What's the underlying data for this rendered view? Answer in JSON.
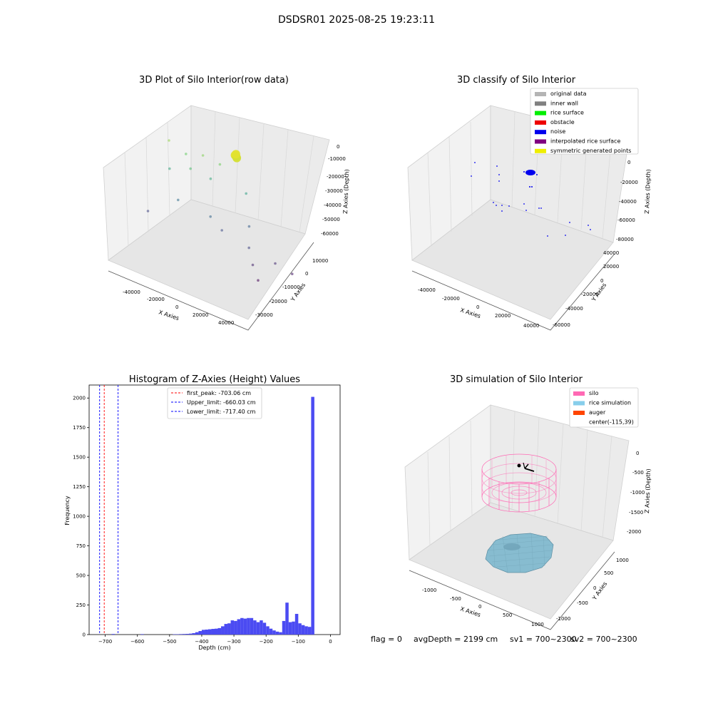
{
  "figure_title": "DSDSR01 2025-08-25 19:23:11",
  "status": {
    "flag": "flag = 0",
    "avg_depth": "avgDepth = 2199 cm",
    "sv1": "sv1 = 700~2300",
    "sv2": "sv2 = 700~2300"
  },
  "chart_data": [
    {
      "type": "scatter",
      "title": "3D Plot of Silo Interior(row data)",
      "xlabel": "X Axies",
      "ylabel": "Y Axies",
      "zlabel": "Z Axies (Depth)",
      "x_ticks": [
        "-40000",
        "-20000",
        "0",
        "20000",
        "40000"
      ],
      "y_ticks": [
        "-30000",
        "-20000",
        "-10000",
        "0",
        "10000"
      ],
      "z_ticks": [
        "0",
        "-10000",
        "-20000",
        "-30000",
        "-40000",
        "-50000",
        "-60000"
      ],
      "grid": true,
      "colormap": "viridis",
      "points_xyz": [
        [
          -300,
          300,
          -3000
        ],
        [
          500,
          0,
          -3500
        ],
        [
          1000,
          -500,
          -4000
        ],
        [
          0,
          800,
          -2500
        ],
        [
          -40000,
          10000,
          -10000
        ],
        [
          -30000,
          8000,
          -15000
        ],
        [
          -20000,
          6000,
          -12000
        ],
        [
          -10000,
          4000,
          -14000
        ],
        [
          -25000,
          2000,
          -20000
        ],
        [
          -38000,
          6000,
          -26000
        ],
        [
          -15000,
          4000,
          -25000
        ],
        [
          5000,
          2000,
          -28000
        ],
        [
          -30000,
          -2000,
          -40000
        ],
        [
          -10000,
          -8000,
          -42000
        ],
        [
          10000,
          -6000,
          -44000
        ],
        [
          -3000,
          -10000,
          -48000
        ],
        [
          15000,
          -18000,
          -50000
        ],
        [
          -45000,
          -5000,
          -50000
        ],
        [
          20000,
          -25000,
          -56000
        ],
        [
          30000,
          -20000,
          -55000
        ],
        [
          40000,
          -22000,
          -58000
        ],
        [
          25000,
          -30000,
          -62000
        ]
      ]
    },
    {
      "type": "scatter",
      "title": "3D classify of Silo Interior",
      "xlabel": "X Axies",
      "ylabel": "Y Axies",
      "zlabel": "Z Axies (Depth)",
      "x_ticks": [
        "-40000",
        "-20000",
        "0",
        "20000",
        "40000"
      ],
      "y_ticks": [
        "-60000",
        "-40000",
        "-20000",
        "0",
        "20000",
        "40000"
      ],
      "z_ticks": [
        "0",
        "-20000",
        "-40000",
        "-60000",
        "-80000"
      ],
      "grid": true,
      "legend": [
        {
          "label": "original data",
          "color": "#b4b4b4"
        },
        {
          "label": "inner wall",
          "color": "#808080"
        },
        {
          "label": "rice surface",
          "color": "#00ee00"
        },
        {
          "label": "obstacle",
          "color": "#ee0000"
        },
        {
          "label": "noise",
          "color": "#0000ee"
        },
        {
          "label": "interpolated rice surface",
          "color": "#800080"
        },
        {
          "label": "symmetric generated points",
          "color": "#eeee00"
        }
      ],
      "legend_location": "upper right"
    },
    {
      "type": "bar",
      "title": "Histogram of Z-Axies (Height) Values",
      "xlabel": "Depth (cm)",
      "ylabel": "Frequency",
      "xlim": [
        -750,
        30
      ],
      "ylim": [
        0,
        2110
      ],
      "x_ticks": [
        -700,
        -600,
        -500,
        -400,
        -300,
        -200,
        -100,
        0
      ],
      "y_ticks": [
        0,
        250,
        500,
        750,
        1000,
        1250,
        1500,
        1750,
        2000
      ],
      "bin_width": 10,
      "bar_color": "#4b4bf2",
      "bins": [
        [
          -680,
          5
        ],
        [
          -590,
          4
        ],
        [
          -490,
          3
        ],
        [
          -480,
          3
        ],
        [
          -470,
          4
        ],
        [
          -460,
          5
        ],
        [
          -450,
          6
        ],
        [
          -440,
          8
        ],
        [
          -430,
          12
        ],
        [
          -420,
          20
        ],
        [
          -410,
          30
        ],
        [
          -400,
          40
        ],
        [
          -390,
          42
        ],
        [
          -380,
          45
        ],
        [
          -370,
          48
        ],
        [
          -360,
          50
        ],
        [
          -350,
          55
        ],
        [
          -340,
          70
        ],
        [
          -330,
          90
        ],
        [
          -320,
          95
        ],
        [
          -310,
          120
        ],
        [
          -300,
          115
        ],
        [
          -290,
          130
        ],
        [
          -280,
          140
        ],
        [
          -270,
          135
        ],
        [
          -260,
          140
        ],
        [
          -250,
          140
        ],
        [
          -240,
          120
        ],
        [
          -230,
          105
        ],
        [
          -220,
          120
        ],
        [
          -210,
          100
        ],
        [
          -200,
          70
        ],
        [
          -190,
          50
        ],
        [
          -180,
          35
        ],
        [
          -170,
          25
        ],
        [
          -160,
          20
        ],
        [
          -150,
          115
        ],
        [
          -140,
          270
        ],
        [
          -130,
          105
        ],
        [
          -120,
          110
        ],
        [
          -110,
          175
        ],
        [
          -100,
          95
        ],
        [
          -90,
          80
        ],
        [
          -80,
          70
        ],
        [
          -70,
          65
        ],
        [
          -60,
          2010
        ]
      ],
      "reference_lines": [
        {
          "label": "first_peak: -703.06 cm",
          "value": -703.06,
          "color": "#ff0000"
        },
        {
          "label": "Upper_limit: -660.03 cm",
          "value": -660.03,
          "color": "#0000ff"
        },
        {
          "label": "Lower_limit: -717.40 cm",
          "value": -717.4,
          "color": "#0000ff"
        }
      ],
      "legend_location": "upper center"
    },
    {
      "type": "surface",
      "title": "3D simulation of Silo Interior",
      "xlabel": "X Axies",
      "ylabel": "Y Axies",
      "zlabel": "Z Axies (Depth)",
      "x_ticks": [
        "-1000",
        "-500",
        "0",
        "500",
        "1000"
      ],
      "y_ticks": [
        "-1000",
        "-500",
        "0",
        "500",
        "1000"
      ],
      "z_ticks": [
        "0",
        "-500",
        "-1000",
        "-1500",
        "-2000"
      ],
      "grid": true,
      "legend": [
        {
          "label": "silo",
          "color": "#ff69b4"
        },
        {
          "label": "rice simulation",
          "color": "#87ceeb"
        },
        {
          "label": "auger",
          "color": "#ff4500"
        },
        {
          "label": "center(-115,39)",
          "color": ""
        }
      ],
      "legend_location": "upper right"
    }
  ]
}
